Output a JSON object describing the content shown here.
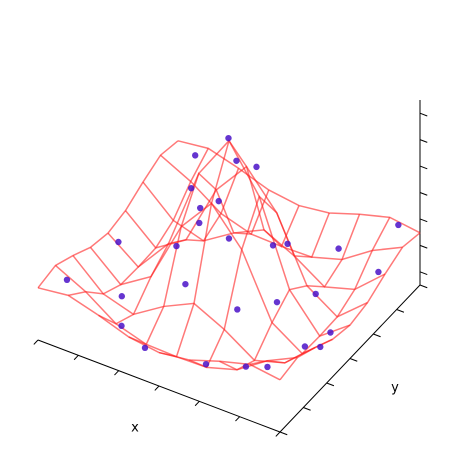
{
  "chart_data": {
    "type": "surface3d",
    "xlabel": "x",
    "ylabel": "y",
    "xlim": [
      -6,
      6
    ],
    "ylim": [
      -6,
      6
    ],
    "zlim": [
      -0.3,
      1.1
    ],
    "xticks": [
      -6,
      -4,
      -2,
      0,
      2,
      4,
      6
    ],
    "yticks": [
      -6,
      -4,
      -2,
      0,
      2,
      4,
      6
    ],
    "zticks": [
      -0.2,
      0,
      0.2,
      0.4,
      0.6,
      0.8,
      1
    ],
    "surface": {
      "color": "#ff2020",
      "x": [
        -6,
        -4.5,
        -3,
        -1.5,
        0,
        1.5,
        3,
        4.5,
        6
      ],
      "y": [
        -6,
        -4.5,
        -3,
        -1.5,
        0,
        1.5,
        3,
        4.5,
        6
      ],
      "z": [
        [
          0.095,
          0.125,
          0.061,
          -0.016,
          -0.047,
          -0.016,
          0.061,
          0.125,
          0.095
        ],
        [
          0.125,
          0.013,
          -0.142,
          -0.211,
          -0.217,
          -0.211,
          -0.142,
          0.013,
          0.125
        ],
        [
          0.061,
          -0.142,
          -0.21,
          -0.063,
          0.047,
          -0.063,
          -0.21,
          -0.142,
          0.061
        ],
        [
          -0.016,
          -0.211,
          -0.063,
          0.402,
          0.665,
          0.402,
          -0.063,
          -0.211,
          -0.016
        ],
        [
          -0.047,
          -0.217,
          0.047,
          0.665,
          1,
          0.665,
          0.047,
          -0.217,
          -0.047
        ],
        [
          -0.016,
          -0.211,
          -0.063,
          0.402,
          0.665,
          0.402,
          -0.063,
          -0.211,
          -0.016
        ],
        [
          0.061,
          -0.142,
          -0.21,
          -0.063,
          0.047,
          -0.063,
          -0.21,
          -0.142,
          0.061
        ],
        [
          0.125,
          0.013,
          -0.142,
          -0.211,
          -0.217,
          -0.211,
          -0.142,
          0.013,
          0.125
        ],
        [
          0.095,
          0.125,
          0.061,
          -0.016,
          -0.047,
          -0.016,
          0.061,
          0.125,
          0.095
        ]
      ]
    },
    "scatter": {
      "color": "#4a12c8",
      "x": [
        -5.2,
        -4.1,
        -3.3,
        -2.2,
        -1.1,
        0.3,
        1.4,
        2.6,
        3.7,
        4.8,
        5.5,
        -4.8,
        -2.9,
        -0.6,
        0.9,
        2.1,
        3.2,
        4.4,
        5.1,
        -5.6,
        -3.8,
        -1.7,
        0.1,
        1.8,
        3.5,
        5.8,
        -2.4,
        0.6,
        2.9,
        -0.2
      ],
      "y": [
        -4.9,
        -2.1,
        1.2,
        3.8,
        -5.3,
        -1.4,
        2.6,
        4.9,
        -3.1,
        0.4,
        3.3,
        5.4,
        -4.2,
        -2.7,
        0.8,
        -5.6,
        1.9,
        -1.1,
        5.7,
        0.2,
        4.1,
        -0.3,
        3.6,
        -2.4,
        -4.6,
        -2.2,
        1.6,
        -0.4,
        -0.9,
        0.3
      ],
      "z": [
        0.1,
        -0.22,
        -0.1,
        -0.22,
        -0.14,
        0.69,
        0.06,
        -0.12,
        -0.21,
        -0.21,
        0.02,
        0.11,
        -0.18,
        0.13,
        0.78,
        -0.05,
        -0.15,
        -0.2,
        0.13,
        -0.11,
        -0.11,
        0.57,
        -0.12,
        0.05,
        -0.08,
        -0.02,
        0.09,
        0.92,
        0.03,
        0.98
      ]
    }
  }
}
